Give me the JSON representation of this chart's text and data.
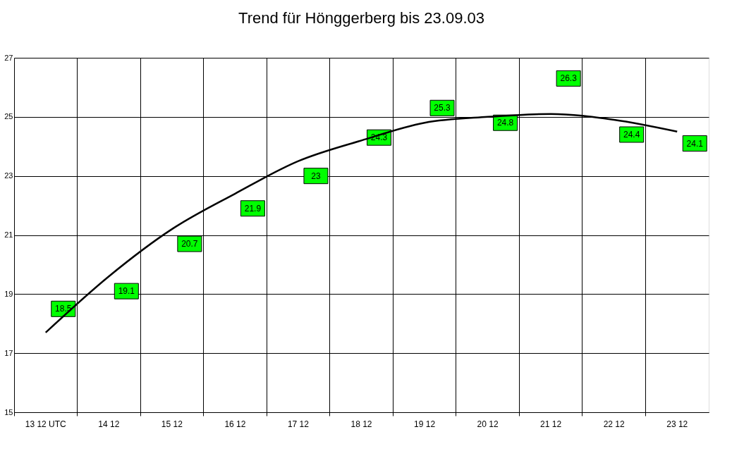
{
  "chart_data": {
    "type": "scatter",
    "title": "Trend für Hönggerberg bis 23.09.03",
    "categories": [
      "13 12 UTC",
      "14 12",
      "15 12",
      "16 12",
      "17 12",
      "18 12",
      "19 12",
      "20 12",
      "21 12",
      "22 12",
      "23 12"
    ],
    "series": [
      {
        "color": "#00ff00",
        "values": [
          18.5,
          19.1,
          20.7,
          21.9,
          23,
          24.3,
          25.3,
          24.8,
          26.3,
          24.4,
          24.1
        ],
        "value_labels": [
          "18.5",
          "19.1",
          "20.7",
          "21.9",
          "23",
          "24.3",
          "25.3",
          "24.8",
          "26.3",
          "24.4",
          "24.1"
        ]
      },
      {
        "type": "line",
        "color": "#000000",
        "values": [
          17.7,
          19.6,
          21.2,
          22.4,
          23.5,
          24.2,
          24.8,
          25.0,
          25.1,
          24.9,
          24.5
        ]
      }
    ],
    "ylim": [
      15,
      27
    ],
    "yticks": [
      15,
      17,
      19,
      21,
      23,
      25,
      27
    ],
    "grid": true,
    "line_style": "solid"
  }
}
